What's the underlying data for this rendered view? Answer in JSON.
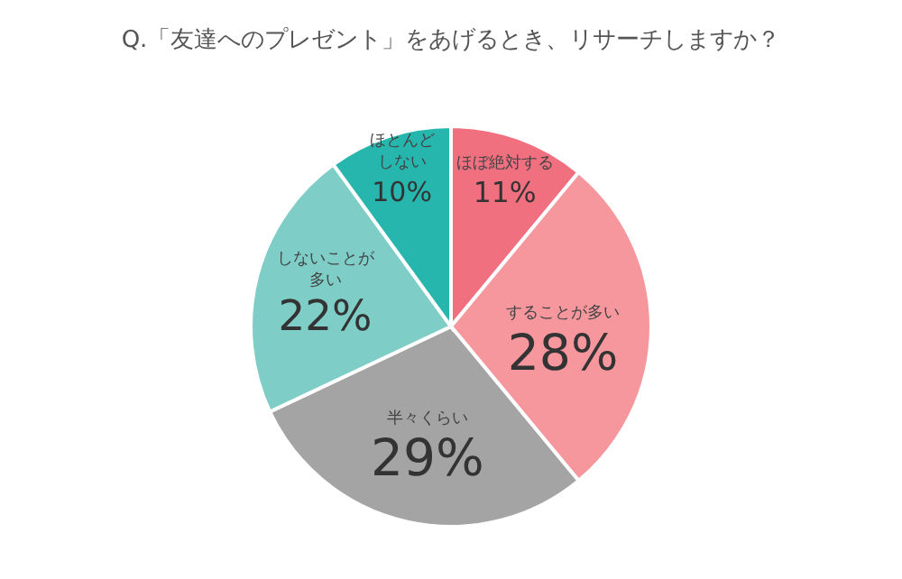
{
  "chart_data": {
    "type": "pie",
    "title": "Q.「友達へのプレゼント」をあげるとき、リサーチしますか？",
    "categories": [
      "ほぼ絶対する",
      "することが多い",
      "半々くらい",
      "しないことが多い",
      "ほとんどしない"
    ],
    "values": [
      11,
      28,
      29,
      22,
      10
    ],
    "value_labels": [
      "11%",
      "28%",
      "29%",
      "22%",
      "10%"
    ],
    "colors": [
      "#f07080",
      "#f5979d",
      "#a4a4a4",
      "#7ecdc7",
      "#27b6ae"
    ]
  }
}
